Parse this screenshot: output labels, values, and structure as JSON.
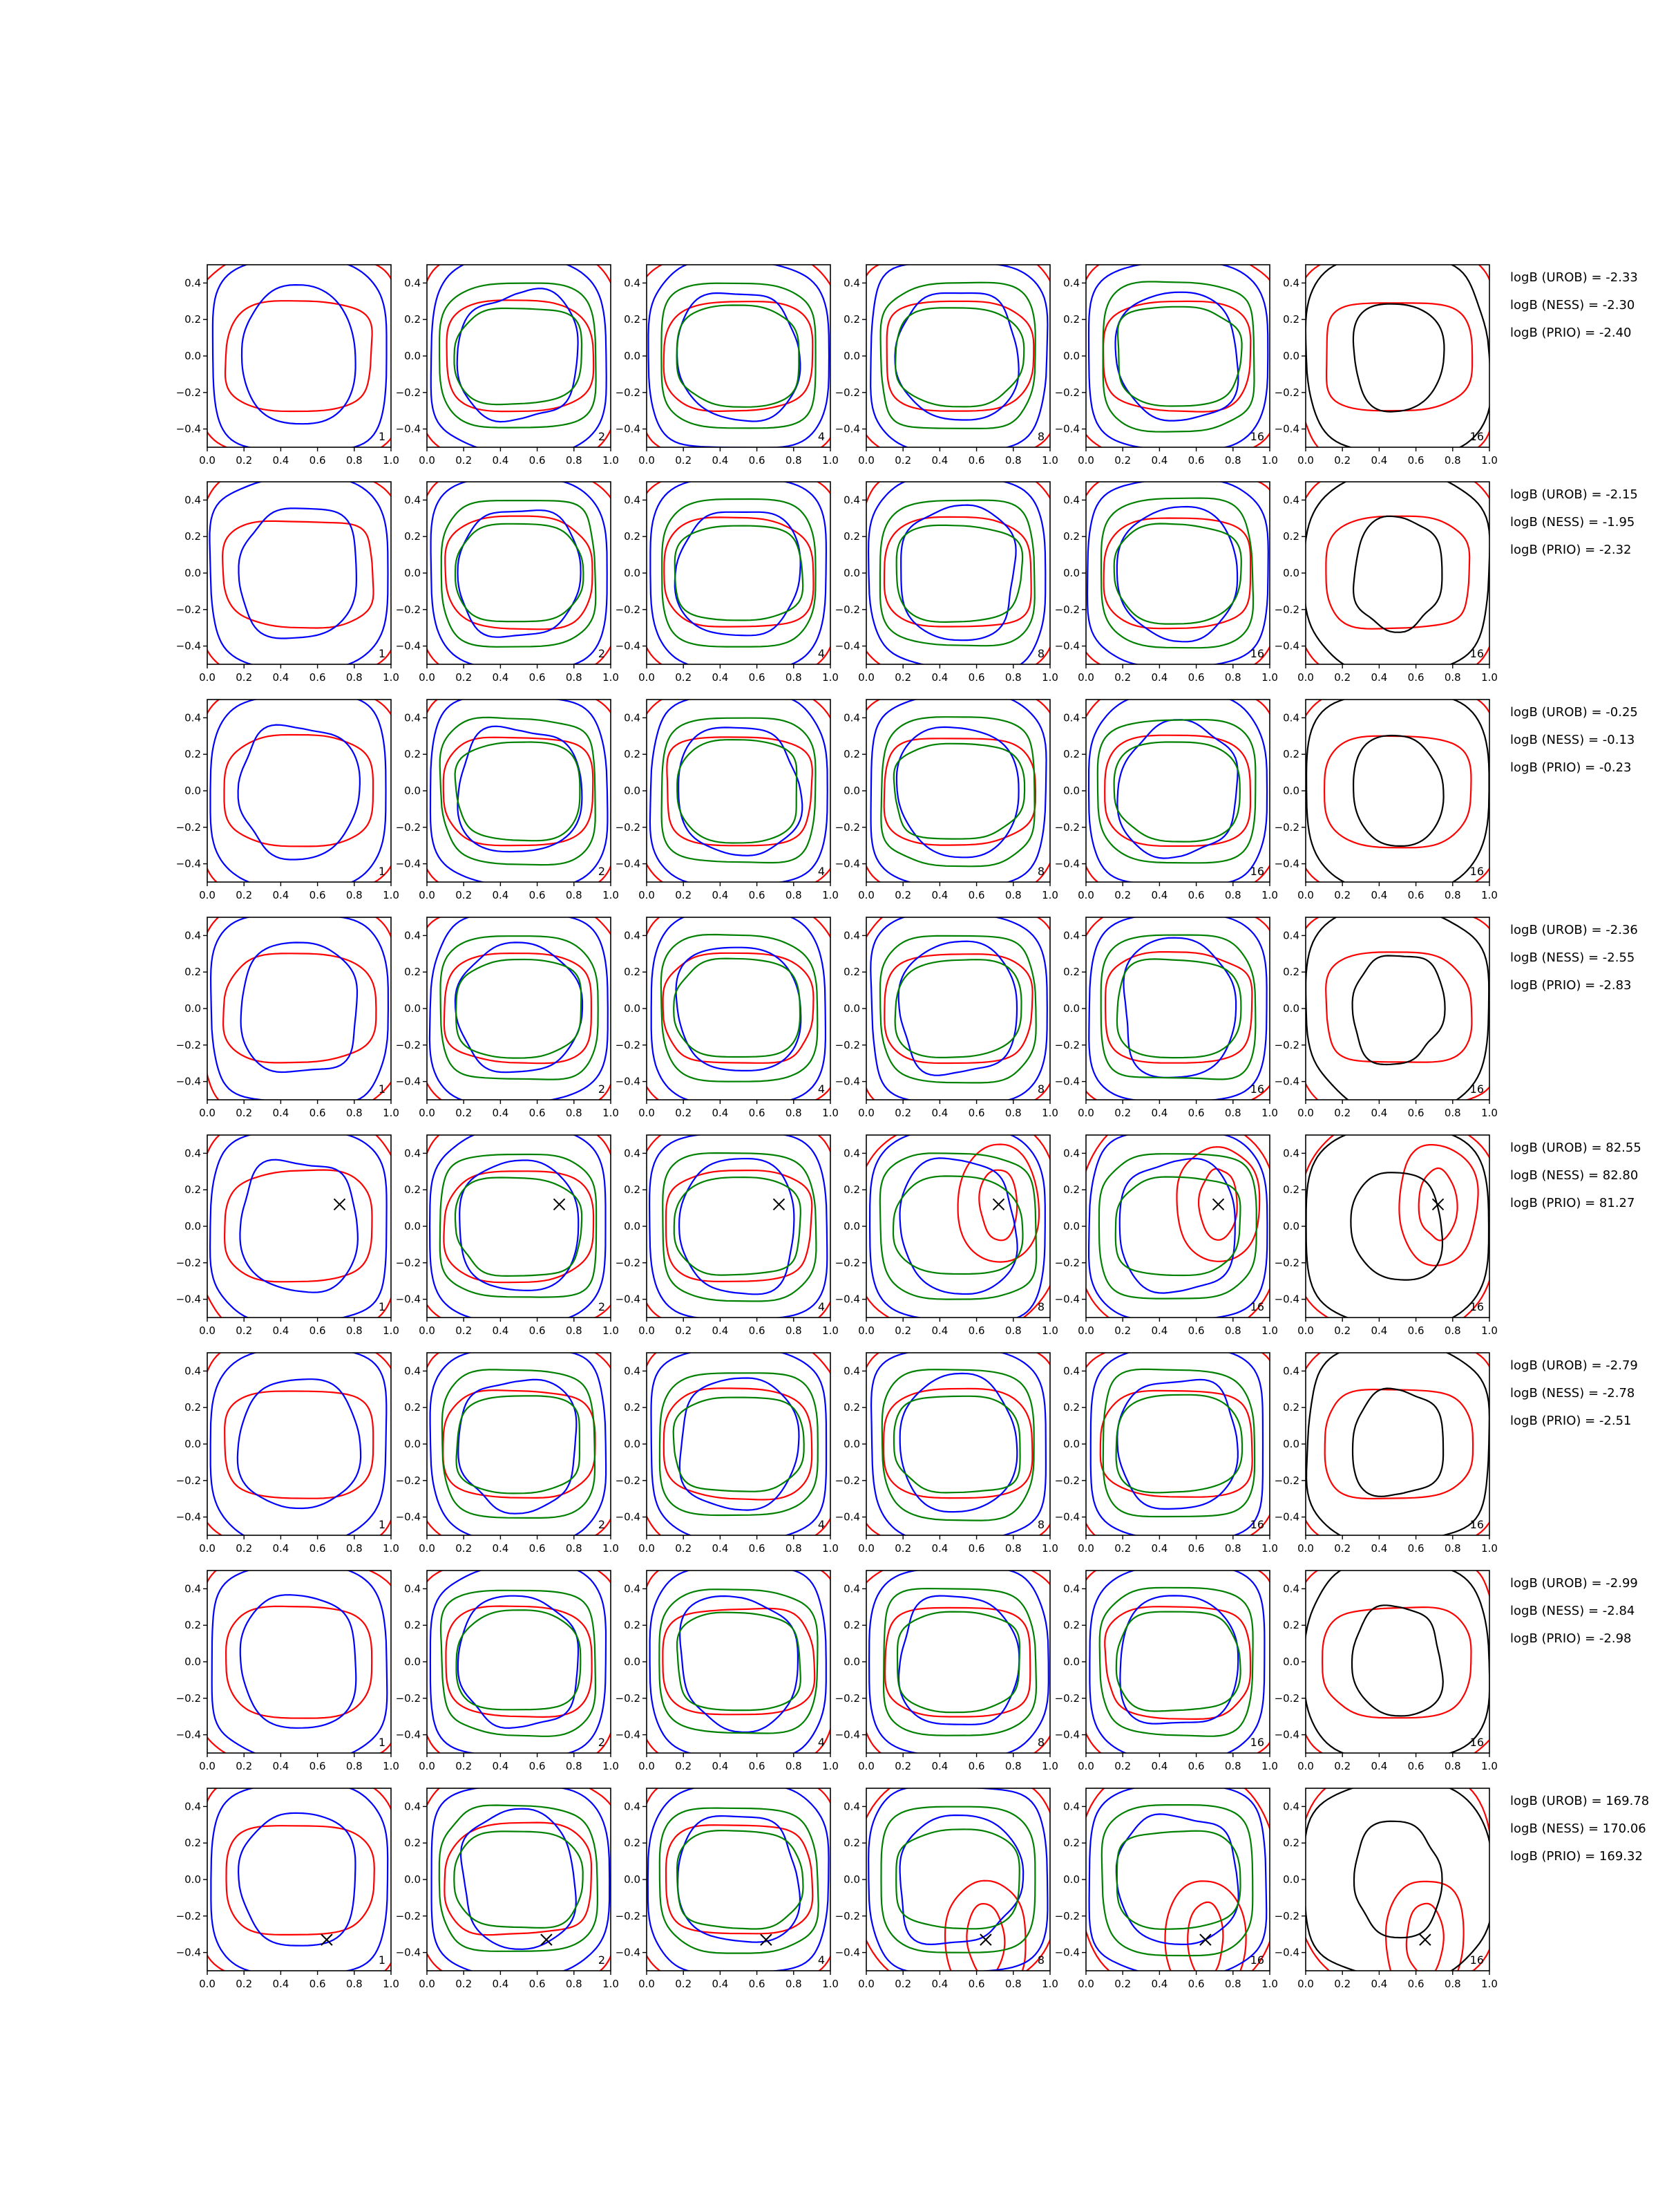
{
  "colors": {
    "red": "#ff0000",
    "blue": "#0000ff",
    "green": "#008000",
    "black": "#000000",
    "marker": "#000000"
  },
  "chart_data": {
    "type": "line",
    "layout": "grid of contour panels, 8 rows by 6 columns, statistics text to the right of each row",
    "xlim": [
      0,
      1
    ],
    "ylim": [
      -0.5,
      0.5
    ],
    "xticks": [
      "0.0",
      "0.2",
      "0.4",
      "0.6",
      "0.8",
      "1.0"
    ],
    "yticks": [
      "0.4",
      "0.2",
      "0.0",
      "−0.2",
      "−0.4"
    ],
    "xtick_values": [
      0,
      0.2,
      0.4,
      0.6,
      0.8,
      1.0
    ],
    "ytick_values": [
      0.4,
      0.2,
      0,
      -0.2,
      -0.4
    ],
    "grid": false,
    "columns": [
      {
        "label": "1",
        "series_colors": [
          "red",
          "blue"
        ]
      },
      {
        "label": "2",
        "series_colors": [
          "red",
          "blue",
          "green"
        ]
      },
      {
        "label": "4",
        "series_colors": [
          "red",
          "blue",
          "green"
        ]
      },
      {
        "label": "8",
        "series_colors": [
          "red",
          "blue",
          "green"
        ]
      },
      {
        "label": "16",
        "series_colors": [
          "red",
          "blue",
          "green"
        ]
      },
      {
        "label": "16",
        "series_colors": [
          "red",
          "black"
        ]
      }
    ],
    "rows": [
      {
        "stats": [
          "logB (UROB) = -2.33",
          "logB (NESS) = -2.30",
          "logB (PRIO) = -2.40"
        ],
        "marker": null
      },
      {
        "stats": [
          "logB (UROB) = -2.15",
          "logB (NESS) = -1.95",
          "logB (PRIO) = -2.32"
        ],
        "marker": null
      },
      {
        "stats": [
          "logB (UROB) = -0.25",
          "logB (NESS) = -0.13",
          "logB (PRIO) = -0.23"
        ],
        "marker": null
      },
      {
        "stats": [
          "logB (UROB) = -2.36",
          "logB (NESS) = -2.55",
          "logB (PRIO) = -2.83"
        ],
        "marker": null
      },
      {
        "stats": [
          "logB (UROB) = 82.55",
          "logB (NESS) = 82.80",
          "logB (PRIO) = 81.27"
        ],
        "marker": {
          "x": 0.72,
          "y": 0.12
        }
      },
      {
        "stats": [
          "logB (UROB) = -2.79",
          "logB (NESS) = -2.78",
          "logB (PRIO) = -2.51"
        ],
        "marker": null
      },
      {
        "stats": [
          "logB (UROB) = -2.99",
          "logB (NESS) = -2.84",
          "logB (PRIO) = -2.98"
        ],
        "marker": null
      },
      {
        "stats": [
          "logB (UROB) = 169.78",
          "logB (NESS) = 170.06",
          "logB (PRIO) = 169.32"
        ],
        "marker": {
          "x": 0.65,
          "y": -0.33
        }
      }
    ]
  }
}
